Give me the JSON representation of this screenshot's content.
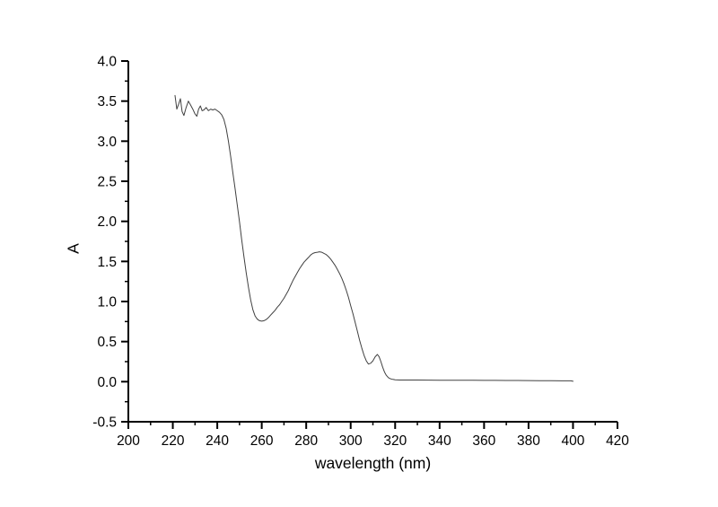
{
  "chart_data": {
    "type": "line",
    "title": "",
    "xlabel": "wavelength (nm)",
    "ylabel": "A",
    "xlim": [
      200,
      420
    ],
    "ylim": [
      -0.5,
      4.0
    ],
    "x_major_ticks": [
      200,
      220,
      240,
      260,
      280,
      300,
      320,
      340,
      360,
      380,
      400,
      420
    ],
    "x_minor_step": 10,
    "y_major_ticks": [
      -0.5,
      0.0,
      0.5,
      1.0,
      1.5,
      2.0,
      2.5,
      3.0,
      3.5,
      4.0
    ],
    "y_minor_step": 0.25,
    "y_tick_decimals": 1,
    "grid": false,
    "legend": "none",
    "tick_direction": "out",
    "axis_color": "#000000",
    "line_color": "#404040",
    "background_color": "#ffffff",
    "series": [
      {
        "name": "absorbance",
        "x": [
          221,
          221.8,
          222.6,
          223.4,
          224.2,
          225,
          226,
          227,
          228,
          229,
          230,
          230.8,
          231.6,
          232.4,
          233.2,
          234,
          235,
          236,
          237,
          238,
          239,
          240,
          241,
          242,
          243,
          244,
          245,
          246,
          247,
          248,
          249,
          250,
          251,
          252,
          253,
          254,
          255,
          256,
          257,
          258,
          259,
          260,
          261,
          262,
          263,
          264,
          265,
          266,
          267,
          268,
          269,
          270,
          271,
          272,
          273,
          274,
          275,
          276,
          277,
          278,
          279,
          280,
          281,
          282,
          283,
          284,
          285,
          286,
          287,
          288,
          289,
          290,
          291,
          292,
          293,
          294,
          295,
          296,
          297,
          298,
          299,
          300,
          301,
          302,
          303,
          304,
          305,
          306,
          307,
          308,
          309,
          310,
          311,
          312,
          312.8,
          313.6,
          314.4,
          315.2,
          316,
          317,
          318,
          319,
          320,
          322,
          325,
          330,
          335,
          340,
          345,
          350,
          355,
          360,
          365,
          370,
          375,
          380,
          385,
          390,
          395,
          399,
          400
        ],
        "y": [
          3.57,
          3.4,
          3.46,
          3.53,
          3.37,
          3.32,
          3.42,
          3.5,
          3.45,
          3.4,
          3.34,
          3.31,
          3.4,
          3.44,
          3.38,
          3.39,
          3.42,
          3.38,
          3.4,
          3.39,
          3.4,
          3.38,
          3.36,
          3.33,
          3.27,
          3.16,
          3.0,
          2.81,
          2.61,
          2.41,
          2.2,
          1.99,
          1.77,
          1.56,
          1.36,
          1.18,
          1.02,
          0.9,
          0.82,
          0.78,
          0.76,
          0.755,
          0.76,
          0.775,
          0.8,
          0.83,
          0.86,
          0.89,
          0.93,
          0.96,
          1.0,
          1.04,
          1.09,
          1.14,
          1.2,
          1.26,
          1.31,
          1.36,
          1.41,
          1.45,
          1.49,
          1.52,
          1.55,
          1.58,
          1.6,
          1.61,
          1.615,
          1.62,
          1.615,
          1.6,
          1.585,
          1.56,
          1.53,
          1.49,
          1.45,
          1.4,
          1.35,
          1.29,
          1.22,
          1.14,
          1.05,
          0.95,
          0.85,
          0.74,
          0.63,
          0.52,
          0.42,
          0.33,
          0.26,
          0.22,
          0.23,
          0.26,
          0.31,
          0.34,
          0.31,
          0.25,
          0.18,
          0.12,
          0.08,
          0.05,
          0.035,
          0.028,
          0.024,
          0.021,
          0.02,
          0.02,
          0.019,
          0.018,
          0.018,
          0.017,
          0.017,
          0.016,
          0.016,
          0.015,
          0.015,
          0.014,
          0.013,
          0.012,
          0.011,
          0.01,
          0.005
        ]
      }
    ],
    "annotations": {
      "plateau_absorbance": 3.4,
      "valley_nm": 259,
      "valley_absorbance": 0.76,
      "main_peak_nm": 286,
      "main_peak_absorbance": 1.62,
      "shoulder_min_nm": 308,
      "shoulder_min_absorbance": 0.22,
      "secondary_peak_nm": 312,
      "secondary_peak_absorbance": 0.34
    }
  }
}
